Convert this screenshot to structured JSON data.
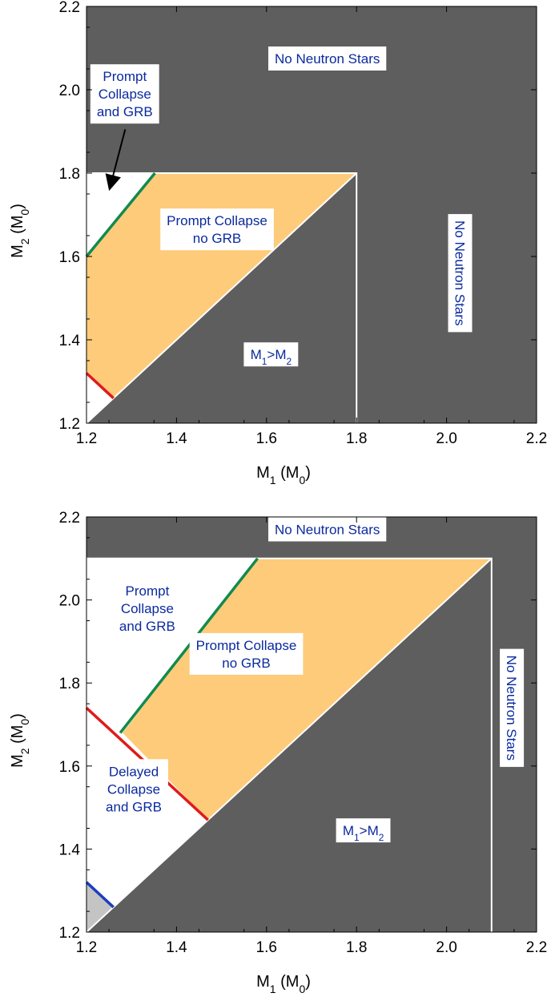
{
  "chart_data": [
    {
      "type": "area",
      "xlabel": "M1 (M0)",
      "ylabel": "M2 (M0)",
      "xlim": [
        1.2,
        2.2
      ],
      "ylim": [
        1.2,
        2.2
      ],
      "xticks": [
        "1.2",
        "1.4",
        "1.6",
        "1.8",
        "2.0",
        "2.2"
      ],
      "yticks": [
        "1.2",
        "1.4",
        "1.6",
        "1.8",
        "2.0",
        "2.2"
      ],
      "max_mass": 1.8,
      "regions": [
        {
          "name": "No Neutron Stars",
          "color": "#5e5e5e",
          "polygon": [
            [
              1.2,
              1.8
            ],
            [
              1.8,
              1.8
            ],
            [
              1.8,
              1.2
            ],
            [
              2.2,
              1.2
            ],
            [
              2.2,
              2.2
            ],
            [
              1.2,
              2.2
            ]
          ]
        },
        {
          "name": "M1>M2",
          "color": "#5e5e5e",
          "polygon": [
            [
              1.2,
              1.2
            ],
            [
              1.8,
              1.2
            ],
            [
              1.8,
              1.8
            ]
          ]
        },
        {
          "name": "Prompt Collapse no GRB",
          "color": "#fdcb7a",
          "polygon": [
            [
              1.2,
              1.6
            ],
            [
              1.352,
              1.8
            ],
            [
              1.8,
              1.8
            ],
            [
              1.26,
              1.26
            ],
            [
              1.2,
              1.32
            ]
          ]
        }
      ],
      "lines": [
        {
          "color": "#118a4e",
          "points": [
            [
              1.2,
              1.6
            ],
            [
              1.352,
              1.8
            ]
          ]
        },
        {
          "color": "#e01b1b",
          "points": [
            [
              1.2,
              1.32
            ],
            [
              1.26,
              1.26
            ]
          ]
        }
      ],
      "labels": [
        {
          "lines": [
            "No Neutron Stars"
          ],
          "x": 1.735,
          "y": 2.075,
          "rotate": 0
        },
        {
          "lines": [
            "Prompt",
            "Collapse",
            "and GRB"
          ],
          "x": 1.285,
          "y": 1.99,
          "rotate": 0
        },
        {
          "lines": [
            "Prompt Collapse",
            "no GRB"
          ],
          "x": 1.49,
          "y": 1.665,
          "rotate": 0
        },
        {
          "lines": [
            "M1>M2"
          ],
          "x": 1.61,
          "y": 1.365,
          "rotate": 0
        },
        {
          "lines": [
            "No Neutron Stars"
          ],
          "x": 2.03,
          "y": 1.56,
          "rotate": 90
        }
      ],
      "arrow": {
        "from": [
          1.286,
          1.905
        ],
        "to": [
          1.252,
          1.765
        ]
      }
    },
    {
      "type": "area",
      "xlabel": "M1 (M0)",
      "ylabel": "M2 (M0)",
      "xlim": [
        1.2,
        2.2
      ],
      "ylim": [
        1.2,
        2.2
      ],
      "xticks": [
        "1.2",
        "1.4",
        "1.6",
        "1.8",
        "2.0",
        "2.2"
      ],
      "yticks": [
        "1.2",
        "1.4",
        "1.6",
        "1.8",
        "2.0",
        "2.2"
      ],
      "max_mass": 2.1,
      "regions": [
        {
          "name": "No Neutron Stars",
          "color": "#5e5e5e",
          "polygon": [
            [
              1.2,
              2.1
            ],
            [
              2.1,
              2.1
            ],
            [
              2.1,
              1.2
            ],
            [
              2.2,
              1.2
            ],
            [
              2.2,
              2.2
            ],
            [
              1.2,
              2.2
            ]
          ]
        },
        {
          "name": "M1>M2",
          "color": "#5e5e5e",
          "polygon": [
            [
              1.2,
              1.2
            ],
            [
              2.1,
              1.2
            ],
            [
              2.1,
              2.1
            ]
          ]
        },
        {
          "name": "Prompt Collapse no GRB",
          "color": "#fdcb7a",
          "polygon": [
            [
              1.28,
              1.68
            ],
            [
              1.58,
              2.1
            ],
            [
              2.1,
              2.1
            ],
            [
              1.47,
              1.47
            ]
          ]
        },
        {
          "name": "Small corner",
          "color": "#c4c4c4",
          "polygon": [
            [
              1.2,
              1.2
            ],
            [
              1.2,
              1.32
            ],
            [
              1.26,
              1.26
            ]
          ]
        }
      ],
      "lines": [
        {
          "color": "#118a4e",
          "points": [
            [
              1.275,
              1.68
            ],
            [
              1.58,
              2.1
            ]
          ]
        },
        {
          "color": "#e01b1b",
          "points": [
            [
              1.2,
              1.74
            ],
            [
              1.47,
              1.47
            ]
          ]
        },
        {
          "color": "#1c3fbf",
          "points": [
            [
              1.2,
              1.32
            ],
            [
              1.26,
              1.26
            ]
          ]
        }
      ],
      "labels": [
        {
          "lines": [
            "No Neutron Stars"
          ],
          "x": 1.735,
          "y": 2.17,
          "rotate": 0
        },
        {
          "lines": [
            "Prompt",
            "Collapse",
            "and GRB"
          ],
          "x": 1.335,
          "y": 1.98,
          "rotate": 0
        },
        {
          "lines": [
            "Prompt Collapse",
            "no GRB"
          ],
          "x": 1.555,
          "y": 1.87,
          "rotate": 0
        },
        {
          "lines": [
            "Delayed",
            "Collapse",
            "and GRB"
          ],
          "x": 1.305,
          "y": 1.545,
          "rotate": 0
        },
        {
          "lines": [
            "M1>M2"
          ],
          "x": 1.815,
          "y": 1.445,
          "rotate": 0
        },
        {
          "lines": [
            "No Neutron Stars"
          ],
          "x": 2.145,
          "y": 1.74,
          "rotate": 90
        }
      ]
    }
  ]
}
